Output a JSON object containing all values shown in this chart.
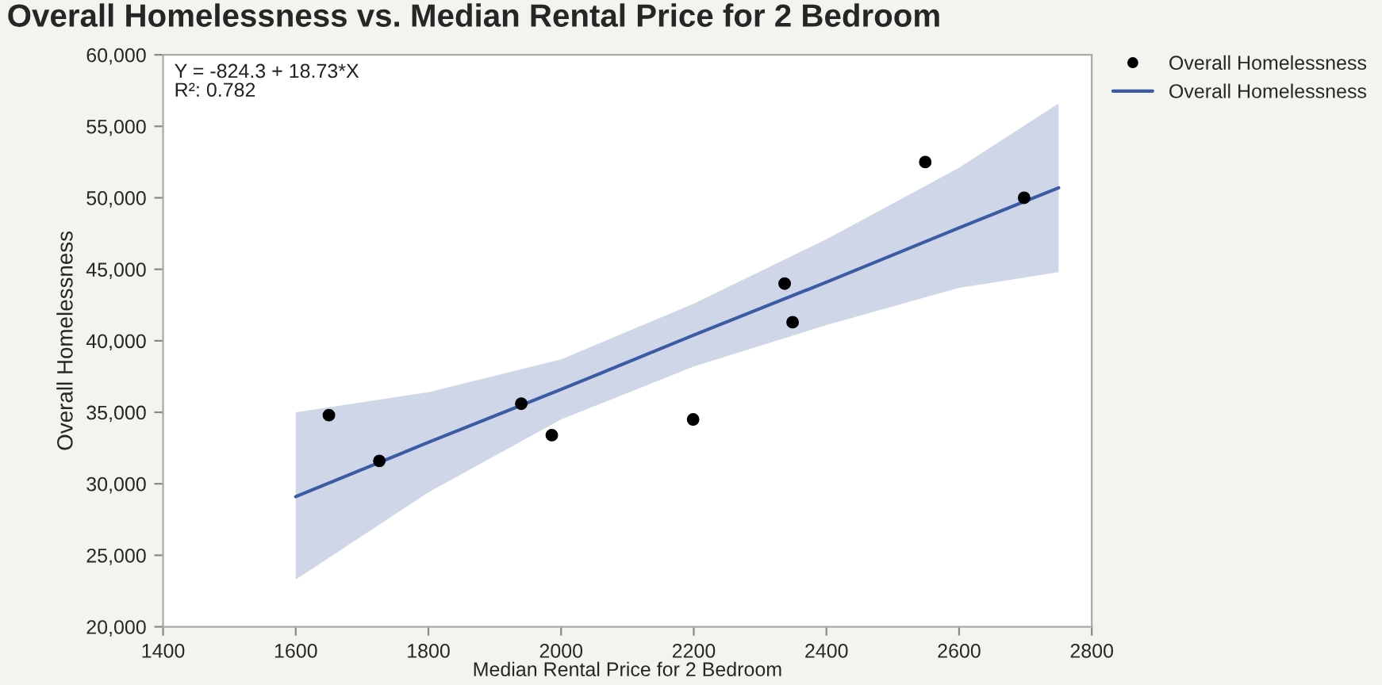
{
  "chart_data": {
    "type": "scatter",
    "title": "Overall Homelessness vs. Median Rental Price for 2 Bedroom",
    "xlabel": "Median Rental Price for 2 Bedroom",
    "ylabel": "Overall Homelessness",
    "annotations": [
      "Y = -824.3 + 18.73*X",
      "R²: 0.782"
    ],
    "series": [
      {
        "name": "Overall Homelessness",
        "color": "#000000",
        "marker": "circle",
        "x": [
          1650,
          1726,
          1940,
          1986,
          2199,
          2337,
          2349,
          2549,
          2698
        ],
        "values": [
          34800,
          31600,
          35600,
          33400,
          34500,
          44000,
          41300,
          52500,
          50000
        ]
      },
      {
        "name": "Overall Homelessness",
        "type": "line",
        "color": "#3b5ba5",
        "line_style": "solid",
        "x": [
          1600,
          1800,
          2000,
          2200,
          2400,
          2600,
          2750
        ],
        "values": [
          29100,
          32900,
          36600,
          40400,
          44100,
          47900,
          50700
        ],
        "lower": [
          23300,
          29400,
          34500,
          38200,
          41100,
          43700,
          44800
        ],
        "upper": [
          35000,
          36400,
          38700,
          42600,
          47100,
          52100,
          56600
        ]
      }
    ],
    "xlim": [
      1400,
      2800
    ],
    "xticks": [
      1400,
      1600,
      1800,
      2000,
      2200,
      2400,
      2600,
      2800
    ],
    "ylim": [
      20000,
      60000
    ],
    "yticks": [
      {
        "value": 20000,
        "label": "20,000"
      },
      {
        "value": 25000,
        "label": "25,000"
      },
      {
        "value": 30000,
        "label": "30,000"
      },
      {
        "value": 35000,
        "label": "35,000"
      },
      {
        "value": 40000,
        "label": "40,000"
      },
      {
        "value": 45000,
        "label": "45,000"
      },
      {
        "value": 50000,
        "label": "50,000"
      },
      {
        "value": 55000,
        "label": "55,000"
      },
      {
        "value": 60000,
        "label": "60,000"
      }
    ],
    "grid": false,
    "legend": "top right"
  }
}
